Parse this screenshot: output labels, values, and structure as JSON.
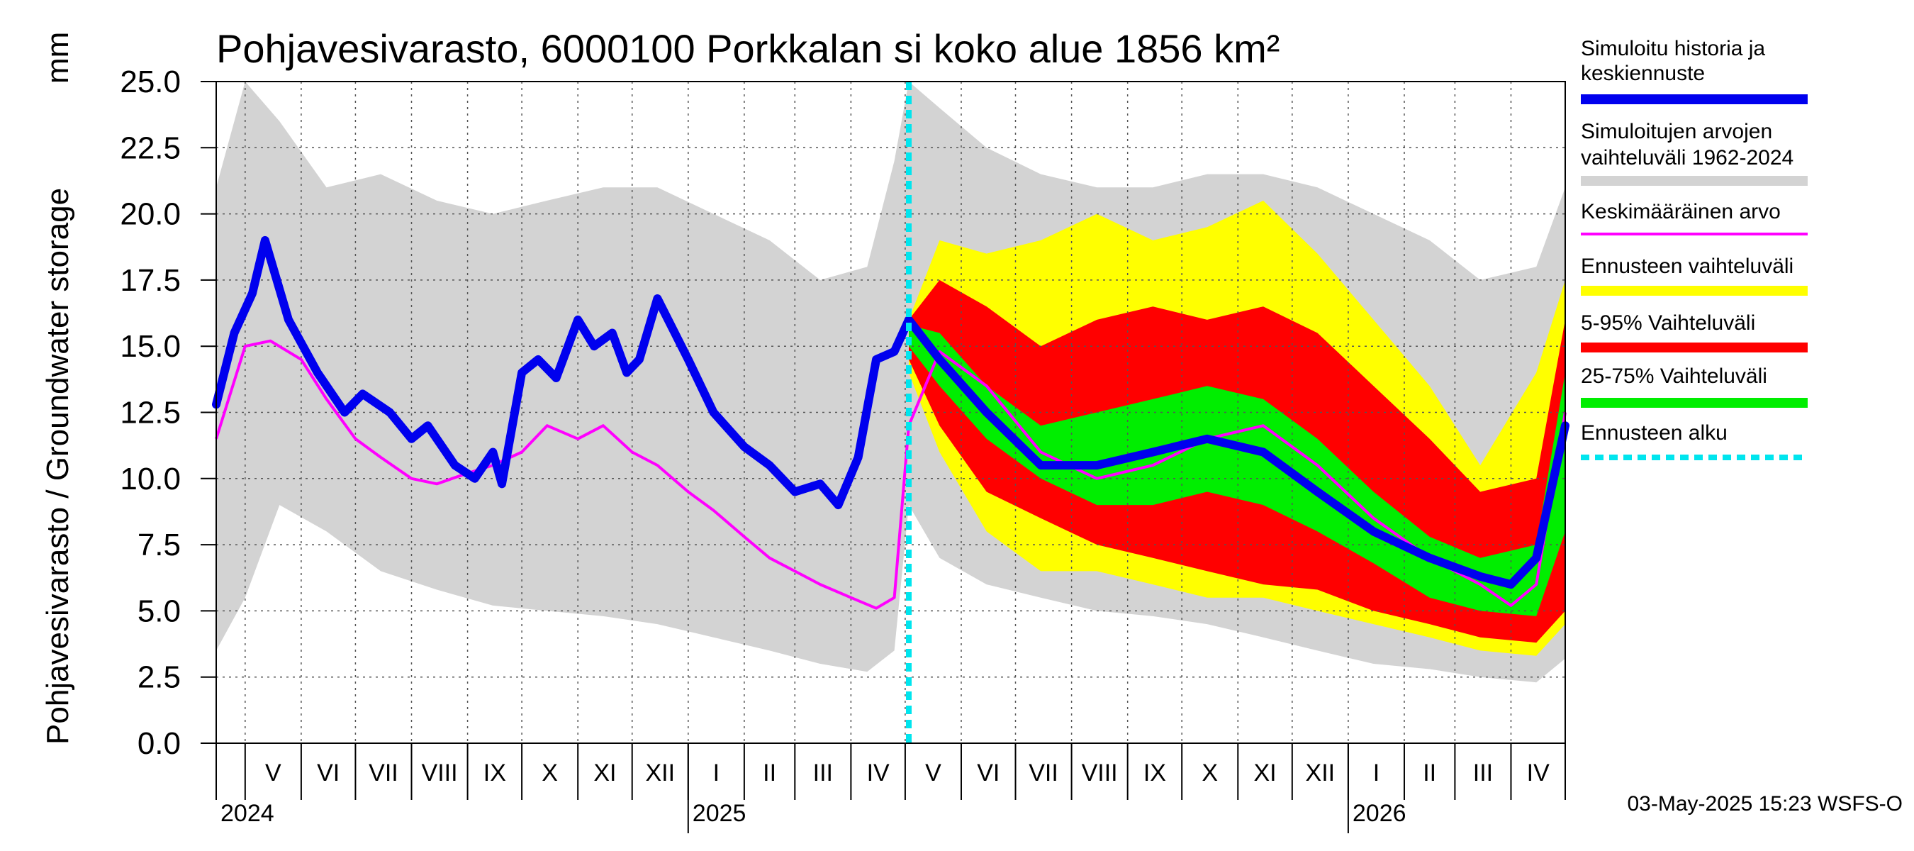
{
  "chart_data": {
    "type": "area",
    "title": "Pohjavesivarasto, 6000100 Porkkalan si koko alue 1856 km²",
    "ylabel": "Pohjavesivarasto / Groundwater storage",
    "yunit": "mm",
    "ylim": [
      0,
      25
    ],
    "yticks": [
      "0.0",
      "2.5",
      "5.0",
      "7.5",
      "10.0",
      "12.5",
      "15.0",
      "17.5",
      "20.0",
      "22.5",
      "25.0"
    ],
    "grid": true,
    "x_start": "2024-04-15",
    "x_end": "2026-05-01",
    "months": [
      {
        "label": "V",
        "start": "2024-05-01"
      },
      {
        "label": "VI",
        "start": "2024-06-01"
      },
      {
        "label": "VII",
        "start": "2024-07-01"
      },
      {
        "label": "VIII",
        "start": "2024-08-01"
      },
      {
        "label": "IX",
        "start": "2024-09-01"
      },
      {
        "label": "X",
        "start": "2024-10-01"
      },
      {
        "label": "XI",
        "start": "2024-11-01"
      },
      {
        "label": "XII",
        "start": "2024-12-01"
      },
      {
        "label": "I",
        "start": "2025-01-01"
      },
      {
        "label": "II",
        "start": "2025-02-01"
      },
      {
        "label": "III",
        "start": "2025-03-01"
      },
      {
        "label": "IV",
        "start": "2025-04-01"
      },
      {
        "label": "V",
        "start": "2025-05-01"
      },
      {
        "label": "VI",
        "start": "2025-06-01"
      },
      {
        "label": "VII",
        "start": "2025-07-01"
      },
      {
        "label": "VIII",
        "start": "2025-08-01"
      },
      {
        "label": "IX",
        "start": "2025-09-01"
      },
      {
        "label": "X",
        "start": "2025-10-01"
      },
      {
        "label": "XI",
        "start": "2025-11-01"
      },
      {
        "label": "XII",
        "start": "2025-12-01"
      },
      {
        "label": "I",
        "start": "2026-01-01"
      },
      {
        "label": "II",
        "start": "2026-02-01"
      },
      {
        "label": "III",
        "start": "2026-03-01"
      },
      {
        "label": "IV",
        "start": "2026-04-01"
      }
    ],
    "years": [
      {
        "label": "2024",
        "start": "2024-04-15"
      },
      {
        "label": "2025",
        "start": "2025-01-01"
      },
      {
        "label": "2026",
        "start": "2026-01-01"
      }
    ],
    "forecast_start": "2025-05-03",
    "colors": {
      "history_range": "#d3d3d3",
      "forecast_range": "#ffff00",
      "p5_95": "#ff0000",
      "p25_75": "#00ee00",
      "simulated": "#0000ee",
      "mean": "#ff00ff",
      "forecast_start": "#00e5ee"
    },
    "series": [
      {
        "name": "Simuloitujen arvojen vaihteluväli 1962-2024",
        "kind": "band",
        "x": [
          "2024-04-15",
          "2024-05-01",
          "2024-05-20",
          "2024-06-15",
          "2024-07-15",
          "2024-08-15",
          "2024-09-15",
          "2024-10-15",
          "2024-11-15",
          "2024-12-15",
          "2025-01-15",
          "2025-02-15",
          "2025-03-15",
          "2025-04-10",
          "2025-04-25",
          "2025-05-03",
          "2025-05-20",
          "2025-06-15",
          "2025-07-15",
          "2025-08-15",
          "2025-09-15",
          "2025-10-15",
          "2025-11-15",
          "2025-12-15",
          "2026-01-15",
          "2026-02-15",
          "2026-03-15",
          "2026-04-15",
          "2026-05-01"
        ],
        "low": [
          3.5,
          5.5,
          9.0,
          8.0,
          6.5,
          5.8,
          5.2,
          5.0,
          4.8,
          4.5,
          4.0,
          3.5,
          3.0,
          2.7,
          3.5,
          9.0,
          7.0,
          6.0,
          5.5,
          5.0,
          4.8,
          4.5,
          4.0,
          3.5,
          3.0,
          2.8,
          2.5,
          2.3,
          3.2
        ],
        "high": [
          21.0,
          25.0,
          23.5,
          21.0,
          21.5,
          20.5,
          20.0,
          20.5,
          21.0,
          21.0,
          20.0,
          19.0,
          17.5,
          18.0,
          22.0,
          25.0,
          24.0,
          22.5,
          21.5,
          21.0,
          21.0,
          21.5,
          21.5,
          21.0,
          20.0,
          19.0,
          17.5,
          18.0,
          21.0
        ]
      },
      {
        "name": "Ennusteen vaihteluväli",
        "kind": "band",
        "x": [
          "2025-05-03",
          "2025-05-20",
          "2025-06-15",
          "2025-07-15",
          "2025-08-15",
          "2025-09-15",
          "2025-10-15",
          "2025-11-15",
          "2025-12-15",
          "2026-01-15",
          "2026-02-15",
          "2026-03-15",
          "2026-04-15",
          "2026-05-01"
        ],
        "low": [
          14.0,
          11.0,
          8.0,
          6.5,
          6.5,
          6.0,
          5.5,
          5.5,
          5.0,
          4.5,
          4.0,
          3.5,
          3.3,
          4.5
        ],
        "high": [
          16.0,
          19.0,
          18.5,
          19.0,
          20.0,
          19.0,
          19.5,
          20.5,
          18.5,
          16.0,
          13.5,
          10.5,
          14.0,
          17.5
        ]
      },
      {
        "name": "5-95% Vaihteluväli",
        "kind": "band",
        "x": [
          "2025-05-03",
          "2025-05-20",
          "2025-06-15",
          "2025-07-15",
          "2025-08-15",
          "2025-09-15",
          "2025-10-15",
          "2025-11-15",
          "2025-12-15",
          "2026-01-15",
          "2026-02-15",
          "2026-03-15",
          "2026-04-15",
          "2026-05-01"
        ],
        "low": [
          14.5,
          12.0,
          9.5,
          8.5,
          7.5,
          7.0,
          6.5,
          6.0,
          5.8,
          5.0,
          4.5,
          4.0,
          3.8,
          5.0
        ],
        "high": [
          16.0,
          17.5,
          16.5,
          15.0,
          16.0,
          16.5,
          16.0,
          16.5,
          15.5,
          13.5,
          11.5,
          9.5,
          10.0,
          16.0
        ]
      },
      {
        "name": "25-75% Vaihteluväli",
        "kind": "band",
        "x": [
          "2025-05-03",
          "2025-05-20",
          "2025-06-15",
          "2025-07-15",
          "2025-08-15",
          "2025-09-15",
          "2025-10-15",
          "2025-11-15",
          "2025-12-15",
          "2026-01-15",
          "2026-02-15",
          "2026-03-15",
          "2026-04-15",
          "2026-05-01"
        ],
        "low": [
          15.0,
          13.5,
          11.5,
          10.0,
          9.0,
          9.0,
          9.5,
          9.0,
          8.0,
          6.8,
          5.5,
          5.0,
          4.8,
          8.0
        ],
        "high": [
          15.8,
          15.5,
          13.5,
          12.0,
          12.5,
          13.0,
          13.5,
          13.0,
          11.5,
          9.5,
          7.8,
          7.0,
          7.5,
          14.0
        ]
      },
      {
        "name": "Keskimääräinen arvo",
        "kind": "line",
        "x": [
          "2024-04-15",
          "2024-05-01",
          "2024-05-15",
          "2024-06-01",
          "2024-06-15",
          "2024-07-01",
          "2024-07-15",
          "2024-08-01",
          "2024-08-15",
          "2024-09-01",
          "2024-09-15",
          "2024-10-01",
          "2024-10-15",
          "2024-11-01",
          "2024-11-15",
          "2024-12-01",
          "2024-12-15",
          "2025-01-01",
          "2025-01-15",
          "2025-02-01",
          "2025-02-15",
          "2025-03-01",
          "2025-03-15",
          "2025-04-01",
          "2025-04-15",
          "2025-04-25",
          "2025-05-03",
          "2025-05-20",
          "2025-06-15",
          "2025-07-15",
          "2025-08-15",
          "2025-09-15",
          "2025-10-15",
          "2025-11-15",
          "2025-12-15",
          "2026-01-15",
          "2026-02-15",
          "2026-03-15",
          "2026-04-01",
          "2026-04-15",
          "2026-05-01"
        ],
        "y": [
          11.5,
          15.0,
          15.2,
          14.5,
          13.0,
          11.5,
          10.8,
          10.0,
          9.8,
          10.2,
          10.5,
          11.0,
          12.0,
          11.5,
          12.0,
          11.0,
          10.5,
          9.5,
          8.8,
          7.8,
          7.0,
          6.5,
          6.0,
          5.5,
          5.1,
          5.5,
          12.0,
          14.8,
          13.5,
          11.0,
          10.0,
          10.5,
          11.5,
          12.0,
          10.5,
          8.5,
          7.0,
          6.0,
          5.2,
          6.0,
          12.5
        ]
      },
      {
        "name": "Simuloitu historia ja keskiennuste",
        "kind": "line",
        "x": [
          "2024-04-15",
          "2024-04-25",
          "2024-05-05",
          "2024-05-12",
          "2024-05-25",
          "2024-06-10",
          "2024-06-25",
          "2024-07-05",
          "2024-07-20",
          "2024-08-01",
          "2024-08-10",
          "2024-08-25",
          "2024-09-05",
          "2024-09-15",
          "2024-09-20",
          "2024-10-01",
          "2024-10-10",
          "2024-10-20",
          "2024-11-01",
          "2024-11-10",
          "2024-11-20",
          "2024-11-28",
          "2024-12-05",
          "2024-12-15",
          "2025-01-01",
          "2025-01-15",
          "2025-02-01",
          "2025-02-15",
          "2025-03-01",
          "2025-03-15",
          "2025-03-25",
          "2025-04-05",
          "2025-04-15",
          "2025-04-25",
          "2025-05-03",
          "2025-05-20",
          "2025-06-15",
          "2025-07-15",
          "2025-08-15",
          "2025-09-15",
          "2025-10-15",
          "2025-11-15",
          "2025-12-15",
          "2026-01-15",
          "2026-02-15",
          "2026-03-15",
          "2026-04-01",
          "2026-04-15",
          "2026-05-01"
        ],
        "y": [
          12.8,
          15.5,
          17.0,
          19.0,
          16.0,
          14.0,
          12.5,
          13.2,
          12.5,
          11.5,
          12.0,
          10.5,
          10.0,
          11.0,
          9.8,
          14.0,
          14.5,
          13.8,
          16.0,
          15.0,
          15.5,
          14.0,
          14.5,
          16.8,
          14.5,
          12.5,
          11.2,
          10.5,
          9.5,
          9.8,
          9.0,
          10.8,
          14.5,
          14.8,
          16.0,
          14.5,
          12.5,
          10.5,
          10.5,
          11.0,
          11.5,
          11.0,
          9.5,
          8.0,
          7.0,
          6.3,
          6.0,
          7.0,
          12.0
        ]
      }
    ],
    "legend": [
      {
        "label": "Simuloitu historia ja keskiennuste",
        "swatch": "#0000ee",
        "weight": "thick"
      },
      {
        "label": "Simuloitujen arvojen vaihteluväli 1962-2024",
        "swatch": "#d3d3d3",
        "weight": "thick"
      },
      {
        "label": "Keskimääräinen arvo",
        "swatch": "#ff00ff",
        "weight": "thin"
      },
      {
        "label": "Ennusteen vaihteluväli",
        "swatch": "#ffff00",
        "weight": "thick"
      },
      {
        "label": "5-95% Vaihteluväli",
        "swatch": "#ff0000",
        "weight": "thick"
      },
      {
        "label": "25-75% Vaihteluväli",
        "swatch": "#00ee00",
        "weight": "thick"
      },
      {
        "label": "Ennusteen alku",
        "swatch": "#00e5ee",
        "weight": "dashed"
      }
    ],
    "legend_lines": [
      [
        "Simuloitu historia ja",
        "keskiennuste"
      ],
      [
        "Simuloitujen arvojen",
        "vaihteluväli 1962-2024"
      ],
      [
        "Keskimääräinen arvo"
      ],
      [
        "Ennusteen vaihteluväli"
      ],
      [
        "5-95% Vaihteluväli"
      ],
      [
        "25-75% Vaihteluväli"
      ],
      [
        "Ennusteen alku"
      ]
    ],
    "footer": "03-May-2025 15:23 WSFS-O"
  }
}
